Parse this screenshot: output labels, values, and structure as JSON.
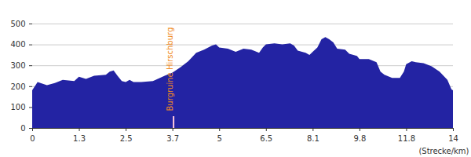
{
  "chart_data": {
    "type": "area",
    "x_label": "(Strecke/km)",
    "color": "#2323a3",
    "grid": true,
    "xlim": [
      0,
      14
    ],
    "xticks": [
      0,
      1.3,
      2.5,
      3.7,
      5,
      6.5,
      8.1,
      9.8,
      11.8,
      14
    ],
    "ylim": [
      0,
      500
    ],
    "yticks": [
      0,
      100,
      200,
      300,
      400,
      500
    ],
    "annotations": [
      {
        "text": "Burgruine Hirschburg",
        "x": 3.72
      }
    ],
    "x": [
      0,
      0.15,
      0.41,
      0.63,
      0.85,
      1.17,
      1.3,
      1.48,
      1.69,
      1.99,
      2.09,
      2.19,
      2.29,
      2.4,
      2.5,
      2.6,
      2.7,
      2.9,
      3.2,
      3.5,
      3.7,
      3.92,
      4.14,
      4.36,
      4.58,
      4.8,
      4.91,
      5,
      5.28,
      5.53,
      5.78,
      6.03,
      6.28,
      6.4,
      6.5,
      6.79,
      7.06,
      7.33,
      7.46,
      7.59,
      7.86,
      7.99,
      8.1,
      8.27,
      8.42,
      8.56,
      8.7,
      8.85,
      8.99,
      9.28,
      9.43,
      9.71,
      9.8,
      10.2,
      10.53,
      10.7,
      10.87,
      11.2,
      11.53,
      11.7,
      11.8,
      12.06,
      12.25,
      12.62,
      13.0,
      13.37,
      13.74,
      13.93,
      14
    ],
    "values": [
      180,
      220,
      205,
      215,
      230,
      225,
      245,
      235,
      250,
      255,
      270,
      275,
      250,
      225,
      220,
      230,
      220,
      220,
      225,
      250,
      265,
      290,
      320,
      360,
      375,
      395,
      400,
      385,
      380,
      365,
      380,
      375,
      360,
      385,
      400,
      405,
      400,
      405,
      395,
      370,
      360,
      350,
      365,
      385,
      425,
      435,
      425,
      410,
      380,
      375,
      355,
      345,
      330,
      330,
      315,
      270,
      255,
      240,
      240,
      270,
      305,
      320,
      315,
      310,
      295,
      270,
      230,
      185,
      180
    ]
  }
}
